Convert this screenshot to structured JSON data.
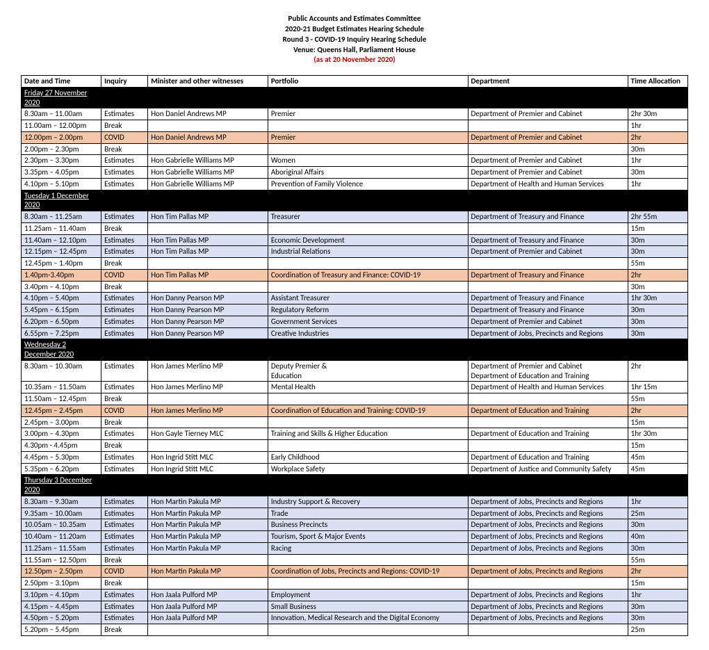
{
  "header": {
    "line1": "Public Accounts and Estimates Committee",
    "line2": "2020-21 Budget Estimates Hearing Schedule",
    "line3": "Round 3 - COVID-19 Inquiry Hearing Schedule",
    "line4": "Venue: Queens Hall, Parliament House",
    "asat": "(as at 20 November 2020)"
  },
  "columns": {
    "time": "Date and Time",
    "inquiry": "Inquiry",
    "witness": "Minister and other witnesses",
    "portfolio": "Portfolio",
    "department": "Department",
    "allocation": "Time Allocation"
  },
  "colors": {
    "covid_bg": "#f4c7a8",
    "blue_bg": "#d9e1f2",
    "day_bg": "#000000",
    "day_fg": "#ffffff",
    "border": "#000000",
    "asat": "#c00000"
  },
  "rows": [
    {
      "type": "day",
      "label": "Friday 27 November 2020"
    },
    {
      "type": "row",
      "style": "",
      "time": "8.30am – 11.00am",
      "inquiry": "Estimates",
      "witness": "Hon Daniel Andrews MP",
      "portfolio": "Premier",
      "department": "Department of Premier and Cabinet",
      "allocation": "2hr 30m"
    },
    {
      "type": "row",
      "style": "",
      "time": "11.00am – 12.00pm",
      "inquiry": "Break",
      "witness": "",
      "portfolio": "",
      "department": "",
      "allocation": "1hr"
    },
    {
      "type": "row",
      "style": "covid",
      "time": "12.00pm – 2.00pm",
      "inquiry": "COVID",
      "witness": "Hon Daniel Andrews MP",
      "portfolio": "Premier",
      "department": "Department of Premier and Cabinet",
      "allocation": "2hr"
    },
    {
      "type": "row",
      "style": "",
      "time": "2.00pm – 2.30pm",
      "inquiry": "Break",
      "witness": "",
      "portfolio": "",
      "department": "",
      "allocation": "30m"
    },
    {
      "type": "row",
      "style": "",
      "time": "2.30pm – 3.30pm",
      "inquiry": "Estimates",
      "witness": "Hon Gabrielle Williams MP",
      "portfolio": "Women",
      "department": "Department of Premier and Cabinet",
      "allocation": "1hr"
    },
    {
      "type": "row",
      "style": "",
      "time": "3.35pm – 4.05pm",
      "inquiry": "Estimates",
      "witness": "Hon Gabrielle Williams MP",
      "portfolio": "Aboriginal Affairs",
      "department": "Department of Premier and Cabinet",
      "allocation": "30m"
    },
    {
      "type": "row",
      "style": "",
      "time": "4.10pm – 5.10pm",
      "inquiry": "Estimates",
      "witness": "Hon Gabrielle Williams MP",
      "portfolio": "Prevention of Family Violence",
      "department": "Department of Health and Human Services",
      "allocation": "1hr"
    },
    {
      "type": "day",
      "label": "Tuesday 1 December 2020"
    },
    {
      "type": "row",
      "style": "blue",
      "time": "8.30am – 11.25am",
      "inquiry": "Estimates",
      "witness": "Hon Tim Pallas MP",
      "portfolio": "Treasurer",
      "department": "Department of Treasury and Finance",
      "allocation": "2hr 55m"
    },
    {
      "type": "row",
      "style": "",
      "time": "11.25am – 11.40am",
      "inquiry": "Break",
      "witness": "",
      "portfolio": "",
      "department": "",
      "allocation": "15m"
    },
    {
      "type": "row",
      "style": "blue",
      "time": "11.40am – 12.10pm",
      "inquiry": "Estimates",
      "witness": "Hon Tim Pallas MP",
      "portfolio": "Economic Development",
      "department": "Department of Treasury and Finance",
      "allocation": "30m"
    },
    {
      "type": "row",
      "style": "blue",
      "time": "12.15pm – 12.45pm",
      "inquiry": "Estimates",
      "witness": "Hon Tim Pallas MP",
      "portfolio": "Industrial Relations",
      "department": "Department of Premier and Cabinet",
      "allocation": "30m"
    },
    {
      "type": "row",
      "style": "",
      "time": "12.45pm – 1.40pm",
      "inquiry": "Break",
      "witness": "",
      "portfolio": "",
      "department": "",
      "allocation": "55m"
    },
    {
      "type": "row",
      "style": "covid",
      "time": "1.40pm-3.40pm",
      "inquiry": "COVID",
      "witness": "Hon Tim Pallas MP",
      "portfolio": "Coordination of Treasury and Finance: COVID-19",
      "department": "Department of Treasury and Finance",
      "allocation": "2hr"
    },
    {
      "type": "row",
      "style": "",
      "time": "3.40pm – 4.10pm",
      "inquiry": "Break",
      "witness": "",
      "portfolio": "",
      "department": "",
      "allocation": "30m"
    },
    {
      "type": "row",
      "style": "blue",
      "time": "4.10pm – 5.40pm",
      "inquiry": "Estimates",
      "witness": "Hon Danny Pearson MP",
      "portfolio": "Assistant Treasurer",
      "department": "Department of Treasury and Finance",
      "allocation": "1hr 30m"
    },
    {
      "type": "row",
      "style": "blue",
      "time": "5.45pm – 6.15pm",
      "inquiry": "Estimates",
      "witness": "Hon Danny Pearson MP",
      "portfolio": "Regulatory Reform",
      "department": "Department of Treasury and Finance",
      "allocation": "30m"
    },
    {
      "type": "row",
      "style": "blue",
      "time": "6.20pm – 6.50pm",
      "inquiry": "Estimates",
      "witness": "Hon Danny Pearson MP",
      "portfolio": "Government Services",
      "department": "Department of Premier and Cabinet",
      "allocation": "30m"
    },
    {
      "type": "row",
      "style": "blue",
      "time": "6.55pm – 7.25pm",
      "inquiry": "Estimates",
      "witness": "Hon Danny Pearson MP",
      "portfolio": "Creative Industries",
      "department": "Department of Jobs, Precincts and Regions",
      "allocation": "30m"
    },
    {
      "type": "day",
      "label": "Wednesday 2 December 2020"
    },
    {
      "type": "row",
      "style": "",
      "time": "8.30am – 10.30am",
      "inquiry": "Estimates",
      "witness": "Hon James Merlino MP",
      "portfolio": "Deputy Premier &\nEducation",
      "department": "Department of Premier and Cabinet\nDepartment of Education and Training",
      "allocation": "2hr"
    },
    {
      "type": "row",
      "style": "",
      "time": "10.35am – 11.50am",
      "inquiry": "Estimates",
      "witness": "Hon James Merlino MP",
      "portfolio": "Mental Health",
      "department": "Department of Health and Human Services",
      "allocation": "1hr 15m"
    },
    {
      "type": "row",
      "style": "",
      "time": "11.50am – 12.45pm",
      "inquiry": "Break",
      "witness": "",
      "portfolio": "",
      "department": "",
      "allocation": "55m"
    },
    {
      "type": "row",
      "style": "covid",
      "time": "12.45pm – 2.45pm",
      "inquiry": "COVID",
      "witness": "Hon James Merlino MP",
      "portfolio": "Coordination of Education and Training: COVID-19",
      "department": "Department of Education and Training",
      "allocation": "2hr"
    },
    {
      "type": "row",
      "style": "",
      "time": "2.45pm – 3.00pm",
      "inquiry": "Break",
      "witness": "",
      "portfolio": "",
      "department": "",
      "allocation": "15m"
    },
    {
      "type": "row",
      "style": "",
      "time": "3.00pm – 4.30pm",
      "inquiry": "Estimates",
      "witness": "Hon Gayle Tierney MLC",
      "portfolio": "Training and Skills & Higher Education",
      "department": "Department of Education and Training",
      "allocation": "1hr 30m"
    },
    {
      "type": "row",
      "style": "",
      "time": "4.30pm - 4.45pm",
      "inquiry": "Break",
      "witness": "",
      "portfolio": "",
      "department": "",
      "allocation": "15m"
    },
    {
      "type": "row",
      "style": "",
      "time": "4.45pm – 5.30pm",
      "inquiry": "Estimates",
      "witness": "Hon Ingrid Stitt MLC",
      "portfolio": "Early Childhood",
      "department": "Department of Education and Training",
      "allocation": "45m"
    },
    {
      "type": "row",
      "style": "",
      "time": "5.35pm – 6.20pm",
      "inquiry": "Estimates",
      "witness": "Hon Ingrid Stitt MLC",
      "portfolio": "Workplace Safety",
      "department": "Department of Justice and Community Safety",
      "allocation": "45m"
    },
    {
      "type": "day",
      "label": "Thursday 3 December 2020"
    },
    {
      "type": "row",
      "style": "blue",
      "time": "8.30am – 9.30am",
      "inquiry": "Estimates",
      "witness": "Hon Martin Pakula MP",
      "portfolio": "Industry Support & Recovery",
      "department": "Department of Jobs, Precincts and Regions",
      "allocation": "1hr"
    },
    {
      "type": "row",
      "style": "blue",
      "time": "9.35am – 10.00am",
      "inquiry": "Estimates",
      "witness": "Hon Martin Pakula MP",
      "portfolio": "Trade",
      "department": "Department of Jobs, Precincts and Regions",
      "allocation": "25m"
    },
    {
      "type": "row",
      "style": "blue",
      "time": "10.05am – 10.35am",
      "inquiry": "Estimates",
      "witness": "Hon Martin Pakula MP",
      "portfolio": "Business Precincts",
      "department": "Department of Jobs, Precincts and Regions",
      "allocation": "30m"
    },
    {
      "type": "row",
      "style": "blue",
      "time": "10.40am – 11.20am",
      "inquiry": "Estimates",
      "witness": "Hon Martin Pakula MP",
      "portfolio": "Tourism, Sport & Major Events",
      "department": "Department of Jobs, Precincts and Regions",
      "allocation": "40m"
    },
    {
      "type": "row",
      "style": "blue",
      "time": "11.25am – 11.55am",
      "inquiry": "Estimates",
      "witness": "Hon Martin Pakula MP",
      "portfolio": "Racing",
      "department": "Department of Jobs, Precincts and Regions",
      "allocation": "30m"
    },
    {
      "type": "row",
      "style": "",
      "time": "11.55am – 12.50pm",
      "inquiry": "Break",
      "witness": "",
      "portfolio": "",
      "department": "",
      "allocation": "55m"
    },
    {
      "type": "row",
      "style": "covid",
      "time": "12.50pm – 2.50pm",
      "inquiry": "COVID",
      "witness": "Hon Martin Pakula MP",
      "portfolio": "Coordination of Jobs, Precincts and Regions: COVID-19",
      "department": "Department of Jobs, Precincts and Regions",
      "allocation": "2hr"
    },
    {
      "type": "row",
      "style": "",
      "time": "2.50pm – 3.10pm",
      "inquiry": "Break",
      "witness": "",
      "portfolio": "",
      "department": "",
      "allocation": "15m"
    },
    {
      "type": "row",
      "style": "blue",
      "time": "3.10pm – 4.10pm",
      "inquiry": "Estimates",
      "witness": "Hon Jaala Pulford MP",
      "portfolio": "Employment",
      "department": "Department of Jobs, Precincts and Regions",
      "allocation": "1hr"
    },
    {
      "type": "row",
      "style": "blue",
      "time": "4.15pm – 4.45pm",
      "inquiry": "Estimates",
      "witness": "Hon Jaala Pulford MP",
      "portfolio": "Small Business",
      "department": "Department of Jobs, Precincts and Regions",
      "allocation": "30m"
    },
    {
      "type": "row",
      "style": "blue",
      "time": "4.50pm – 5.20pm",
      "inquiry": "Estimates",
      "witness": "Hon Jaala Pulford MP",
      "portfolio": "Innovation, Medical Research and the Digital Economy",
      "department": "Department of Jobs, Precincts and Regions",
      "allocation": "30m"
    },
    {
      "type": "row",
      "style": "",
      "time": "5.20pm – 5.45pm",
      "inquiry": "Break",
      "witness": "",
      "portfolio": "",
      "department": "",
      "allocation": "25m"
    }
  ]
}
